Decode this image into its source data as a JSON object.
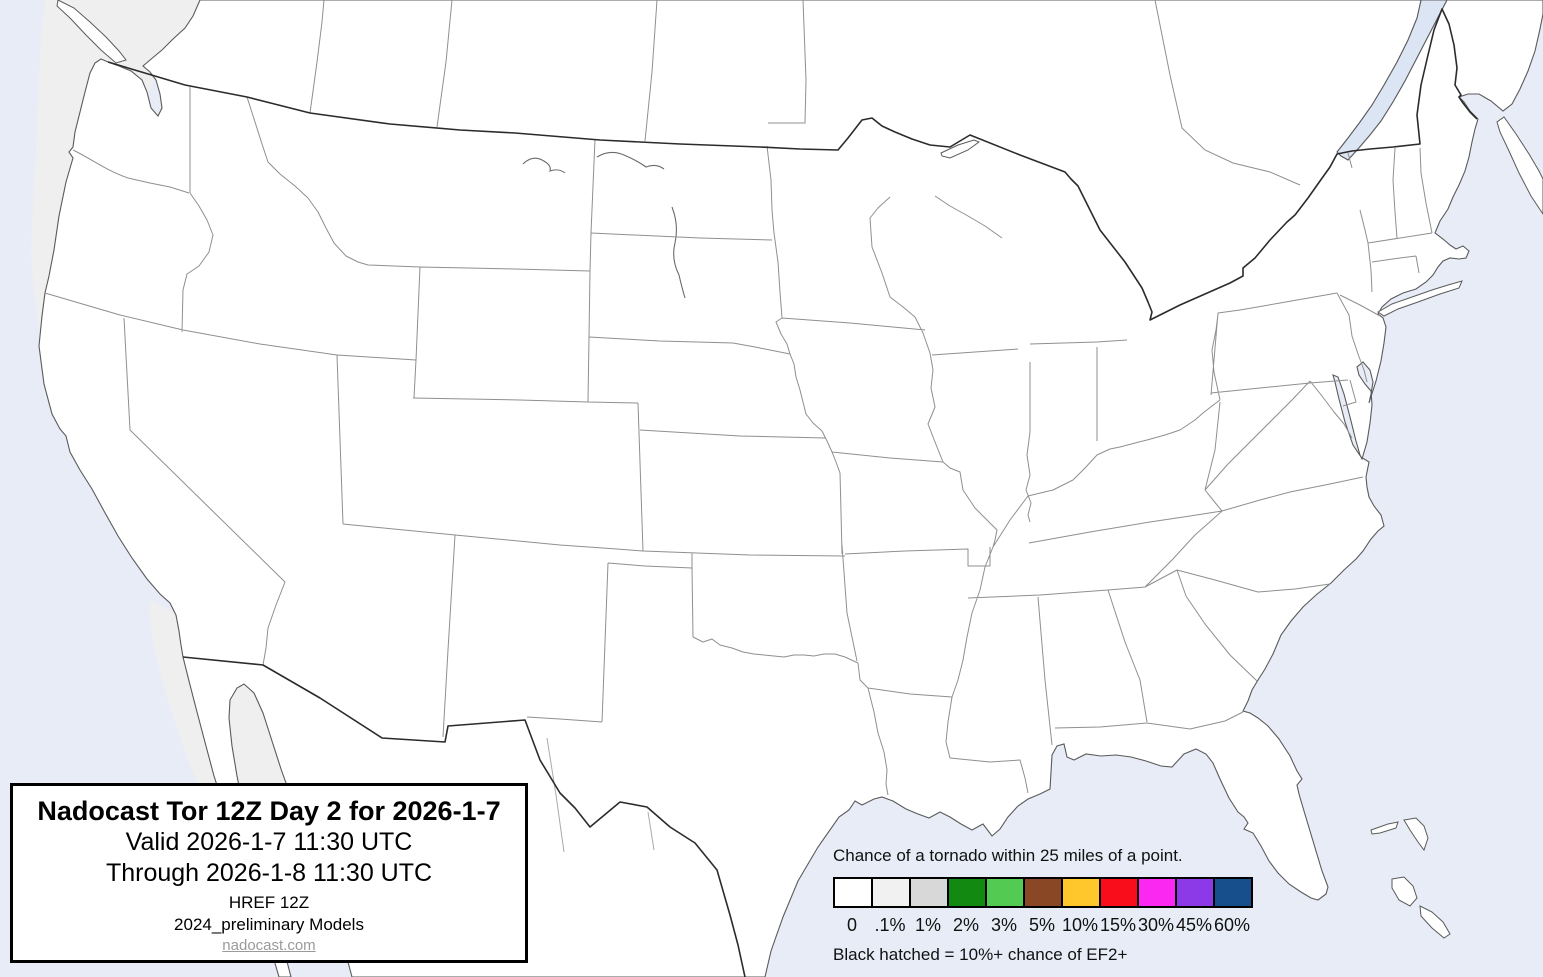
{
  "title_box": {
    "title": "Nadocast Tor 12Z Day 2 for 2026-1-7",
    "valid": "Valid 2026-1-7 11:30 UTC",
    "through": "Through 2026-1-8 11:30 UTC",
    "model_run": "HREF 12Z",
    "models_label": "2024_preliminary Models",
    "site_link": "nadocast.com"
  },
  "legend": {
    "caption": "Chance of a tornado within 25 miles of a point.",
    "note": "Black hatched = 10%+ chance of EF2+",
    "items": [
      {
        "label": "0",
        "color": "#ffffff"
      },
      {
        "label": ".1%",
        "color": "#f1f1f1"
      },
      {
        "label": "1%",
        "color": "#d8d8d8"
      },
      {
        "label": "2%",
        "color": "#128a12"
      },
      {
        "label": "3%",
        "color": "#53cb53"
      },
      {
        "label": "5%",
        "color": "#8a4726"
      },
      {
        "label": "10%",
        "color": "#ffc72c"
      },
      {
        "label": "15%",
        "color": "#f90d1b"
      },
      {
        "label": "30%",
        "color": "#fb28f2"
      },
      {
        "label": "45%",
        "color": "#8c39e8"
      },
      {
        "label": "60%",
        "color": "#174f8c"
      }
    ]
  },
  "map_colors": {
    "ocean": "#e7ecf7",
    "land": "#ffffff",
    "lake": "#dce5f4",
    "state_border": "#8f8f8f",
    "national_border": "#2b2b2b",
    "prob_01": "#efefec",
    "prob_1": "#d6d6d2"
  }
}
